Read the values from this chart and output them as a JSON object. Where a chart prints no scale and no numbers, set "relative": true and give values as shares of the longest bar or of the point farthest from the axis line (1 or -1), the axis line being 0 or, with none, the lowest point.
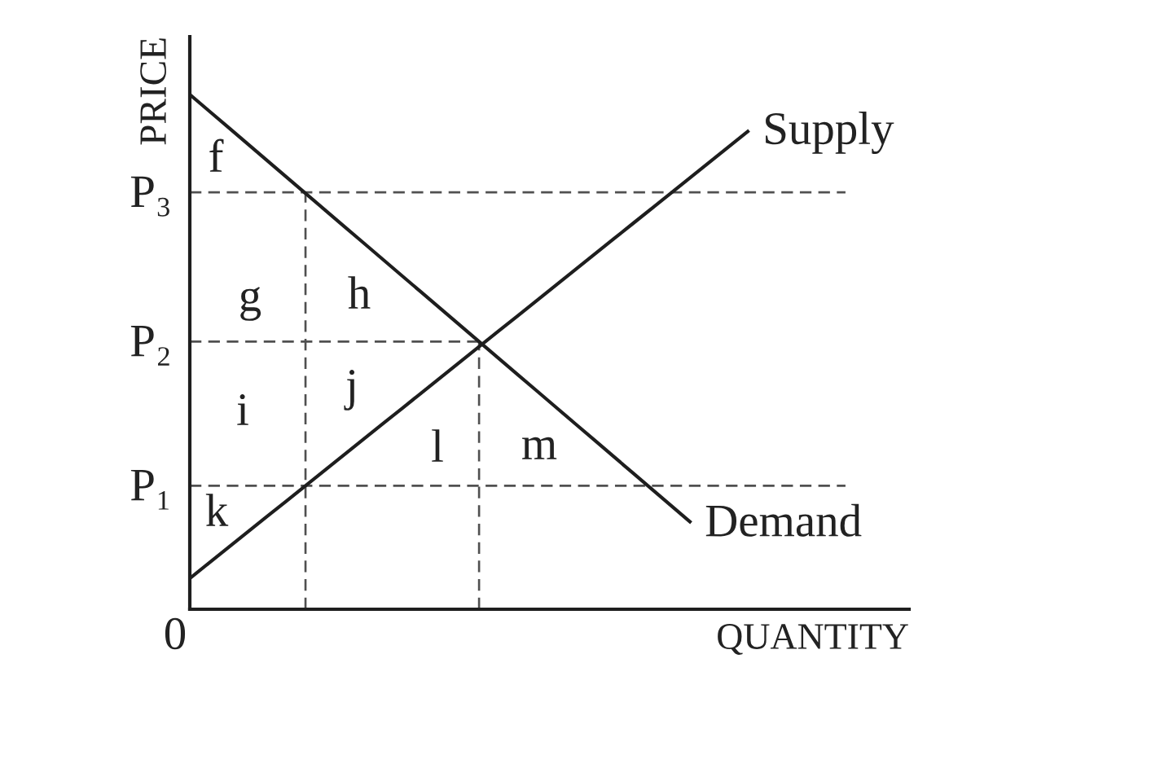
{
  "chart_data": {
    "type": "line",
    "relative": true,
    "xlabel": "QUANTITY",
    "ylabel": "PRICE",
    "categories": [
      null,
      null,
      null,
      null,
      null,
      null,
      null,
      null,
      null,
      null,
      null,
      null,
      null,
      null,
      null,
      null,
      null,
      null,
      null,
      null,
      null,
      null,
      null,
      null,
      null,
      null,
      null,
      null,
      null,
      null,
      null,
      null,
      null,
      null,
      null
    ],
    "series": [
      {
        "name": "Demand",
        "color": "#1e1e1e",
        "values": [
          1,
          0.968,
          0.936,
          0.904,
          0.872,
          0.84,
          0.808,
          0.776,
          0.744,
          0.712,
          0.68,
          0.648,
          0.616,
          0.584,
          0.552,
          0.52,
          0.488,
          0.456,
          0.424,
          0.392,
          0.36,
          0.328,
          0.296,
          0.264,
          0.232,
          0.2,
          0.168,
          null,
          null,
          null,
          null,
          null,
          null,
          null,
          null
        ]
      },
      {
        "name": "Supply",
        "color": "#1e1e1e",
        "values": [
          0.06,
          0.09,
          0.12,
          0.15,
          0.18,
          0.21,
          0.24,
          0.27,
          0.3,
          0.33,
          0.36,
          0.39,
          0.42,
          0.45,
          0.48,
          0.51,
          0.54,
          0.57,
          0.6,
          0.63,
          0.66,
          0.69,
          0.72,
          0.75,
          0.78,
          0.81,
          0.84,
          0.87,
          0.9,
          0.93,
          null,
          null,
          null,
          null,
          null
        ]
      },
      {
        "name": "P₃",
        "color": "#505050",
        "line_style": "dashed",
        "values": [
          0.81,
          0.81,
          0.81,
          0.81,
          0.81,
          0.81,
          0.81,
          0.81,
          0.81,
          0.81,
          0.81,
          0.81,
          0.81,
          0.81,
          0.81,
          0.81,
          0.81,
          0.81,
          0.81,
          0.81,
          0.81,
          0.81,
          0.81,
          0.81,
          0.81,
          0.81,
          0.81,
          0.81,
          0.81,
          0.81,
          0.81,
          0.81,
          0.81,
          0.81,
          0.81
        ]
      },
      {
        "name": "P₂",
        "color": "#505050",
        "line_style": "dashed",
        "values": [
          0.52,
          0.52,
          0.52,
          0.52,
          0.52,
          0.52,
          0.52,
          0.52,
          0.52,
          0.52,
          0.52,
          0.52,
          0.52,
          0.52,
          0.52,
          0.52,
          null,
          null,
          null,
          null,
          null,
          null,
          null,
          null,
          null,
          null,
          null,
          null,
          null,
          null,
          null,
          null,
          null,
          null,
          null
        ]
      },
      {
        "name": "P₁",
        "color": "#505050",
        "line_style": "dashed",
        "values": [
          0.24,
          0.24,
          0.24,
          0.24,
          0.24,
          0.24,
          0.24,
          0.24,
          0.24,
          0.24,
          0.24,
          0.24,
          0.24,
          0.24,
          0.24,
          0.24,
          0.24,
          0.24,
          0.24,
          0.24,
          0.24,
          0.24,
          0.24,
          0.24,
          0.24,
          0.24,
          0.24,
          0.24,
          0.24,
          0.24,
          0.24,
          0.24,
          0.24,
          0.24,
          0.24
        ]
      }
    ],
    "annotations": [
      "0",
      "f",
      "g",
      "h",
      "i",
      "j",
      "k",
      "l",
      "m"
    ]
  }
}
